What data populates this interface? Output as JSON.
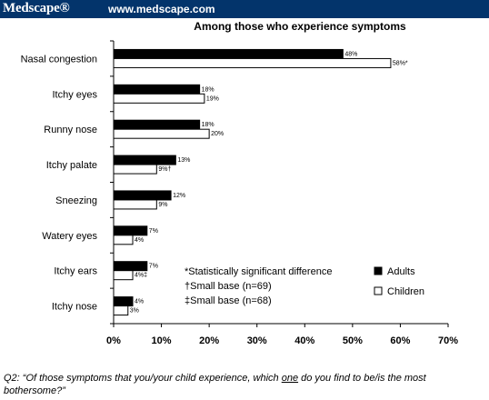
{
  "header": {
    "logo": "Medscape®",
    "url": "www.medscape.com"
  },
  "chart_data": {
    "type": "bar",
    "orientation": "horizontal",
    "title": "Among those who experience symptoms",
    "categories": [
      "Nasal congestion",
      "Itchy eyes",
      "Runny nose",
      "Itchy palate",
      "Sneezing",
      "Watery eyes",
      "Itchy ears",
      "Itchy nose"
    ],
    "series": [
      {
        "name": "Adults",
        "color": "#000000",
        "values": [
          48,
          18,
          18,
          13,
          12,
          7,
          7,
          4
        ],
        "labels": [
          "48%",
          "18%",
          "18%",
          "13%",
          "12%",
          "7%",
          "7%",
          "4%"
        ]
      },
      {
        "name": "Children",
        "color": "#ffffff",
        "values": [
          58,
          19,
          20,
          9,
          9,
          4,
          4,
          3
        ],
        "labels": [
          "58%*",
          "19%",
          "20%",
          "9%†",
          "9%",
          "4%",
          "4%‡",
          "3%"
        ]
      }
    ],
    "xlim": [
      0,
      70
    ],
    "xticks": [
      "0%",
      "10%",
      "20%",
      "30%",
      "40%",
      "50%",
      "60%",
      "70%"
    ],
    "grid": false,
    "legend_position": "bottom-right"
  },
  "notes": [
    "*Statistically significant difference",
    "†Small base (n=69)",
    "‡Small base (n=68)"
  ],
  "footer": {
    "q_prefix": "Q2: “Of those symptoms that you/your child experience, which ",
    "q_emph": "one",
    "q_suffix": " do you find to be/is the most bothersome?”"
  }
}
